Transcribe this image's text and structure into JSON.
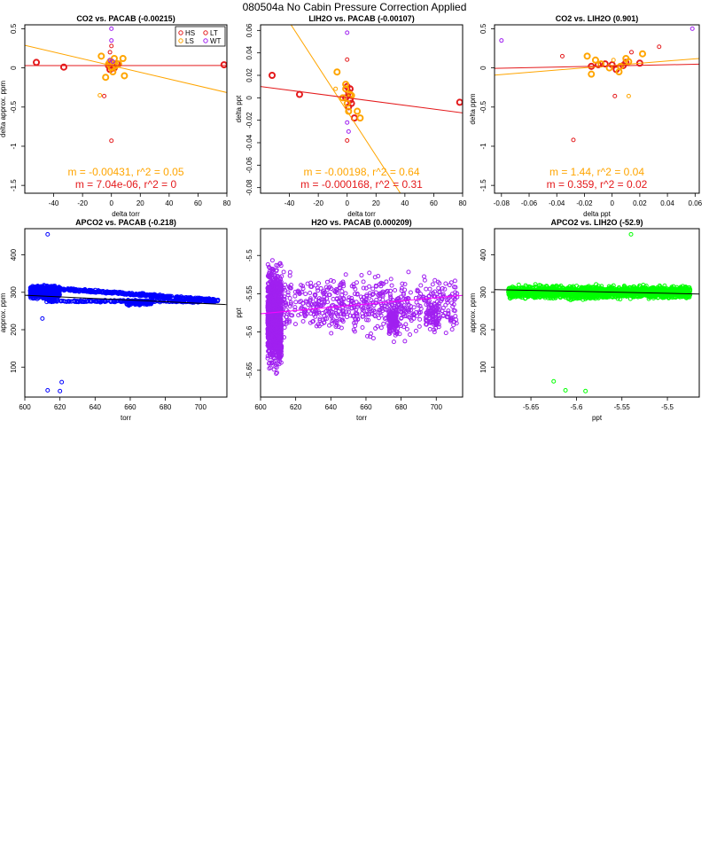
{
  "page_title": "080504a   No Cabin Pressure Correction Applied",
  "chart_data": [
    {
      "type": "scatter",
      "title": "CO2 vs. PACAB (-0.00215)",
      "xlabel": "delta torr",
      "ylabel": "delta approx. ppm",
      "xlim": [
        -60,
        80
      ],
      "ylim": [
        -1.6,
        0.55
      ],
      "xticks": [
        -40,
        -20,
        0,
        20,
        40,
        60,
        80
      ],
      "yticks": [
        0.5,
        0.0,
        -0.5,
        -1.0,
        -1.5
      ],
      "legend": {
        "placement": "top-right",
        "columns": 2,
        "entries": [
          {
            "name": "HS",
            "color": "#e41a1c"
          },
          {
            "name": "LT",
            "color": "#e41a1c"
          },
          {
            "name": "LS",
            "color": "#ffa500"
          },
          {
            "name": "WT",
            "color": "#a020f0"
          }
        ]
      },
      "series": [
        {
          "color": "#e41a1c",
          "r": 3,
          "stroke": 2,
          "points": [
            [
              -52,
              0.07
            ],
            [
              -33,
              0.01
            ],
            [
              78,
              0.04
            ],
            [
              -2,
              0.03
            ],
            [
              0,
              0.06
            ],
            [
              1,
              0.02
            ],
            [
              4,
              0.05
            ],
            [
              -1,
              -0.02
            ],
            [
              2,
              0.0
            ]
          ]
        },
        {
          "color": "#ffa500",
          "r": 3,
          "stroke": 2,
          "points": [
            [
              -7,
              0.15
            ],
            [
              -4,
              -0.12
            ],
            [
              -2,
              0.05
            ],
            [
              0,
              0.0
            ],
            [
              1,
              -0.05
            ],
            [
              2,
              0.12
            ],
            [
              5,
              0.05
            ],
            [
              8,
              0.12
            ],
            [
              9,
              -0.1
            ],
            [
              -1,
              0.08
            ],
            [
              3,
              0.03
            ]
          ]
        },
        {
          "color": "#ffa500",
          "r": 2,
          "stroke": 1,
          "points": [
            [
              -8,
              -0.35
            ],
            [
              0,
              0.1
            ]
          ]
        },
        {
          "color": "#e41a1c",
          "r": 2,
          "stroke": 1,
          "points": [
            [
              -5,
              -0.36
            ],
            [
              0,
              -0.93
            ],
            [
              0,
              0.28
            ],
            [
              -1,
              0.2
            ]
          ]
        },
        {
          "color": "#a020f0",
          "r": 2,
          "stroke": 1,
          "points": [
            [
              0,
              0.5
            ],
            [
              0,
              0.35
            ],
            [
              -1,
              0.1
            ],
            [
              1,
              0.08
            ]
          ]
        }
      ],
      "fits": [
        {
          "color": "#ffa500",
          "slope": -0.00431,
          "intercept": 0.03
        },
        {
          "color": "#e41a1c",
          "slope": 7.04e-06,
          "intercept": 0.03
        }
      ],
      "annotations": [
        {
          "text": "m = -0.00431, r^2 = 0.05",
          "color": "#ffa500"
        },
        {
          "text": "m = 7.04e-06, r^2 = 0",
          "color": "#e41a1c"
        }
      ]
    },
    {
      "type": "scatter",
      "title": "LIH2O vs. PACAB (-0.00107)",
      "xlabel": "delta torr",
      "ylabel": "delta ppt",
      "xlim": [
        -60,
        80
      ],
      "ylim": [
        -0.085,
        0.065
      ],
      "xticks": [
        -40,
        -20,
        0,
        20,
        40,
        60,
        80
      ],
      "yticks": [
        0.06,
        0.04,
        0.02,
        0.0,
        -0.02,
        -0.04,
        -0.06,
        -0.08
      ],
      "series": [
        {
          "color": "#e41a1c",
          "r": 3,
          "stroke": 2,
          "points": [
            [
              -52,
              0.02
            ],
            [
              -33,
              0.003
            ],
            [
              78,
              -0.004
            ],
            [
              0,
              0.01
            ],
            [
              1,
              0.005
            ],
            [
              2,
              -0.002
            ],
            [
              3,
              -0.005
            ],
            [
              -1,
              0.0
            ],
            [
              1,
              -0.008
            ],
            [
              5,
              -0.018
            ],
            [
              2,
              0.008
            ]
          ]
        },
        {
          "color": "#ffa500",
          "r": 3,
          "stroke": 2,
          "points": [
            [
              -7,
              0.023
            ],
            [
              -3,
              0.0
            ],
            [
              -1,
              0.008
            ],
            [
              0,
              -0.005
            ],
            [
              1,
              -0.012
            ],
            [
              2,
              0.003
            ],
            [
              7,
              -0.012
            ],
            [
              9,
              -0.018
            ],
            [
              -1,
              0.012
            ],
            [
              3,
              0.002
            ]
          ]
        },
        {
          "color": "#ffa500",
          "r": 2,
          "stroke": 1,
          "points": [
            [
              -8,
              0.008
            ]
          ]
        },
        {
          "color": "#e41a1c",
          "r": 2,
          "stroke": 1,
          "points": [
            [
              0,
              -0.038
            ],
            [
              0,
              0.034
            ],
            [
              1,
              0.002
            ]
          ]
        },
        {
          "color": "#a020f0",
          "r": 2,
          "stroke": 1,
          "points": [
            [
              0,
              0.058
            ],
            [
              1,
              -0.03
            ],
            [
              0,
              -0.022
            ]
          ]
        }
      ],
      "fits": [
        {
          "color": "#ffa500",
          "slope": -0.00198,
          "intercept": -0.012
        },
        {
          "color": "#e41a1c",
          "slope": -0.000168,
          "intercept": 0.0
        }
      ],
      "annotations": [
        {
          "text": "m = -0.00198, r^2 = 0.64",
          "color": "#ffa500"
        },
        {
          "text": "m = -0.000168, r^2 = 0.31",
          "color": "#e41a1c"
        }
      ]
    },
    {
      "type": "scatter",
      "title": "CO2 vs. LIH2O (0.901)",
      "xlabel": "delta ppt",
      "ylabel": "delta ppm",
      "xlim": [
        -0.085,
        0.063
      ],
      "ylim": [
        -1.6,
        0.55
      ],
      "xticks": [
        -0.08,
        -0.06,
        -0.04,
        -0.02,
        0.0,
        0.02,
        0.04,
        0.06
      ],
      "yticks": [
        0.5,
        0.0,
        -0.5,
        -1.0,
        -1.5
      ],
      "series": [
        {
          "color": "#e41a1c",
          "r": 3,
          "stroke": 2,
          "points": [
            [
              -0.015,
              0.02
            ],
            [
              -0.005,
              0.05
            ],
            [
              0.0,
              0.04
            ],
            [
              0.003,
              -0.02
            ],
            [
              0.008,
              0.03
            ],
            [
              0.01,
              0.07
            ],
            [
              0.02,
              0.06
            ],
            [
              -0.01,
              0.04
            ]
          ]
        },
        {
          "color": "#ffa500",
          "r": 3,
          "stroke": 2,
          "points": [
            [
              -0.018,
              0.15
            ],
            [
              -0.012,
              0.1
            ],
            [
              -0.008,
              0.05
            ],
            [
              -0.002,
              0.0
            ],
            [
              0.005,
              -0.05
            ],
            [
              0.012,
              0.08
            ],
            [
              0.022,
              0.18
            ],
            [
              0.01,
              0.12
            ],
            [
              -0.015,
              -0.08
            ],
            [
              0.006,
              0.02
            ]
          ]
        },
        {
          "color": "#ffa500",
          "r": 2,
          "stroke": 1,
          "points": [
            [
              0.012,
              -0.36
            ],
            [
              0.001,
              0.1
            ]
          ]
        },
        {
          "color": "#e41a1c",
          "r": 2,
          "stroke": 1,
          "points": [
            [
              -0.036,
              0.15
            ],
            [
              -0.028,
              -0.92
            ],
            [
              0.034,
              0.27
            ],
            [
              0.002,
              -0.36
            ],
            [
              0.014,
              0.2
            ]
          ]
        },
        {
          "color": "#a020f0",
          "r": 2,
          "stroke": 1,
          "points": [
            [
              -0.08,
              0.35
            ],
            [
              0.058,
              0.5
            ]
          ]
        }
      ],
      "fits": [
        {
          "color": "#ffa500",
          "slope": 1.44,
          "intercept": 0.03
        },
        {
          "color": "#e41a1c",
          "slope": 0.359,
          "intercept": 0.025
        }
      ],
      "annotations": [
        {
          "text": "m = 1.44, r^2 = 0.04",
          "color": "#ffa500"
        },
        {
          "text": "m = 0.359, r^2 = 0.02",
          "color": "#e41a1c"
        }
      ]
    },
    {
      "type": "scatter",
      "title": "APCO2 vs. PACAB (-0.218)",
      "xlabel": "torr",
      "ylabel": "approx. ppm",
      "xlim": [
        600,
        715
      ],
      "ylim": [
        20,
        470
      ],
      "xticks": [
        600,
        620,
        640,
        660,
        680,
        700
      ],
      "yticks": [
        100,
        200,
        300,
        400
      ],
      "series": [
        {
          "color": "#0000ff",
          "r": 2,
          "stroke": 1,
          "generator": "apco2_pacab",
          "points": [
            [
              613,
              455
            ],
            [
              613,
              38
            ],
            [
              621,
              60
            ],
            [
              620,
              36
            ],
            [
              610,
              230
            ]
          ]
        }
      ],
      "fits": [
        {
          "color": "#000000",
          "slope": -0.218,
          "intercept": 423
        }
      ]
    },
    {
      "type": "scatter",
      "title": "H2O vs. PACAB (0.000209)",
      "xlabel": "torr",
      "ylabel": "ppt",
      "xlim": [
        600,
        715
      ],
      "ylim": [
        -5.685,
        -5.465
      ],
      "xticks": [
        600,
        620,
        640,
        660,
        680,
        700
      ],
      "yticks": [
        -5.5,
        -5.55,
        -5.6,
        -5.65
      ],
      "series": [
        {
          "color": "#a020f0",
          "r": 2,
          "stroke": 1,
          "generator": "h2o_pacab",
          "points": []
        }
      ],
      "fits": [
        {
          "color": "#ff00ff",
          "slope": 0.000209,
          "intercept": -5.7015
        }
      ]
    },
    {
      "type": "scatter",
      "title": "APCO2 vs. LIH2O (-52.9)",
      "xlabel": "ppt",
      "ylabel": "approx. ppm",
      "xlim": [
        -5.69,
        -5.465
      ],
      "ylim": [
        20,
        470
      ],
      "xticks": [
        -5.65,
        -5.6,
        -5.55,
        -5.5
      ],
      "yticks": [
        100,
        200,
        300,
        400
      ],
      "series": [
        {
          "color": "#00ff00",
          "r": 2,
          "stroke": 1,
          "generator": "apco2_lih2o",
          "points": [
            [
              -5.54,
              455
            ],
            [
              -5.625,
              62
            ],
            [
              -5.612,
              38
            ],
            [
              -5.59,
              36
            ]
          ]
        }
      ],
      "fits": [
        {
          "color": "#000000",
          "slope": -52.9,
          "intercept": 6.3
        }
      ]
    }
  ]
}
